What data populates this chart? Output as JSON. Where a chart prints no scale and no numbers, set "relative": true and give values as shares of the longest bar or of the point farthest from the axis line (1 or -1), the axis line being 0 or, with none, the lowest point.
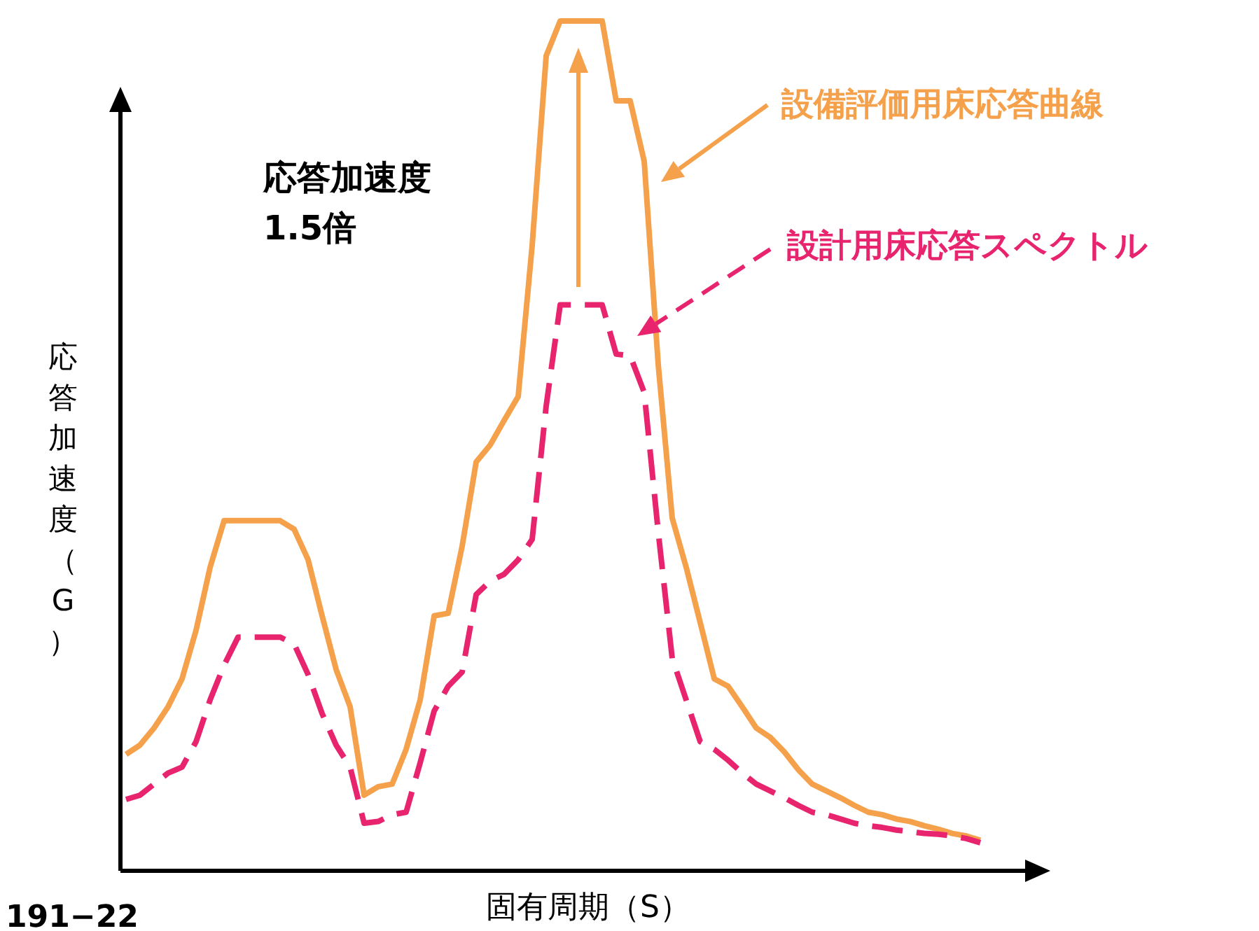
{
  "chart_data": {
    "type": "line",
    "relative": true,
    "xlabel": "固有周期（S）",
    "ylabel": "応答加速度（G）",
    "annotations": [
      "応答加速度\n1.5倍",
      "191−22"
    ],
    "categories": [
      null,
      null,
      null,
      null,
      null,
      null,
      null,
      null,
      null,
      null,
      null,
      null,
      null,
      null,
      null,
      null,
      null,
      null,
      null,
      null,
      null,
      null,
      null,
      null,
      null,
      null,
      null,
      null,
      null,
      null,
      null,
      null,
      null,
      null,
      null,
      null,
      null,
      null,
      null,
      null,
      null,
      null,
      null,
      null,
      null,
      null,
      null,
      null,
      null,
      null,
      null,
      null,
      null,
      null,
      null,
      null,
      null,
      null,
      null,
      null,
      null,
      null
    ],
    "series": [
      {
        "name": "設備評価用床応答曲線",
        "color": "#f5a04a",
        "line_style": "solid",
        "values": [
          0.137,
          0.148,
          0.168,
          0.193,
          0.226,
          0.283,
          0.357,
          0.412,
          0.412,
          0.412,
          0.412,
          0.412,
          0.402,
          0.366,
          0.3,
          0.237,
          0.193,
          0.089,
          0.099,
          0.102,
          0.143,
          0.201,
          0.3,
          0.303,
          0.382,
          0.481,
          0.501,
          0.53,
          0.558,
          0.736,
          0.959,
          1,
          1,
          1,
          1,
          0.906,
          0.906,
          0.835,
          0.596,
          0.415,
          0.357,
          0.292,
          0.226,
          0.217,
          0.193,
          0.168,
          0.157,
          0.14,
          0.119,
          0.102,
          0.094,
          0.086,
          0.077,
          0.069,
          0.066,
          0.061,
          0.058,
          0.053,
          0.049,
          0.044,
          0.041,
          0.036
        ]
      },
      {
        "name": "設計用床応答スペクトル",
        "color": "#e8246e",
        "line_style": "dashed",
        "values": [
          0.084,
          0.089,
          0.102,
          0.115,
          0.122,
          0.152,
          0.201,
          0.242,
          0.275,
          0.275,
          0.275,
          0.275,
          0.267,
          0.231,
          0.185,
          0.148,
          0.122,
          0.056,
          0.058,
          0.066,
          0.069,
          0.127,
          0.188,
          0.217,
          0.234,
          0.325,
          0.341,
          0.349,
          0.366,
          0.39,
          0.547,
          0.666,
          0.666,
          0.666,
          0.666,
          0.608,
          0.606,
          0.563,
          0.399,
          0.25,
          0.201,
          0.152,
          0.143,
          0.13,
          0.115,
          0.102,
          0.094,
          0.086,
          0.077,
          0.069,
          0.066,
          0.061,
          0.056,
          0.053,
          0.051,
          0.048,
          0.046,
          0.044,
          0.043,
          0.041,
          0.038,
          0.033
        ]
      }
    ]
  }
}
